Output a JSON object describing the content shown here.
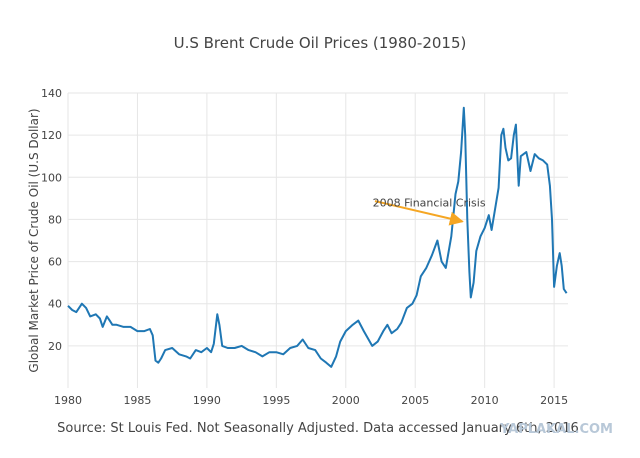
{
  "chart_data": {
    "type": "line",
    "title": "U.S Brent Crude Oil Prices (1980-2015)",
    "ylabel": "Global Market Price of Crude Oil (U.S Dollar)",
    "xlabel": "",
    "xlim": [
      1980,
      2016
    ],
    "ylim": [
      0,
      140
    ],
    "x_ticks": [
      1980,
      1985,
      1990,
      1995,
      2000,
      2005,
      2010,
      2015
    ],
    "y_ticks": [
      20,
      40,
      60,
      80,
      100,
      120,
      140
    ],
    "grid": true,
    "line_color": "#1f77b4",
    "series": [
      {
        "x": [
          1980.0,
          1980.3,
          1980.6,
          1981.0,
          1981.3,
          1981.6,
          1982.0,
          1982.3,
          1982.5,
          1982.8,
          1983.0,
          1983.2,
          1983.5,
          1984.0,
          1984.5,
          1985.0,
          1985.5,
          1985.9,
          1986.1,
          1986.3,
          1986.5,
          1986.7,
          1987.0,
          1987.5,
          1988.0,
          1988.5,
          1988.8,
          1989.2,
          1989.6,
          1990.0,
          1990.3,
          1990.5,
          1990.75,
          1990.9,
          1991.1,
          1991.5,
          1992.0,
          1992.5,
          1993.0,
          1993.5,
          1994.0,
          1994.5,
          1995.0,
          1995.5,
          1996.0,
          1996.5,
          1996.9,
          1997.3,
          1997.8,
          1998.2,
          1998.6,
          1998.95,
          1999.3,
          1999.6,
          2000.0,
          2000.5,
          2000.9,
          2001.3,
          2001.9,
          2002.3,
          2002.7,
          2003.0,
          2003.3,
          2003.7,
          2004.0,
          2004.4,
          2004.8,
          2005.1,
          2005.4,
          2005.8,
          2006.2,
          2006.6,
          2006.9,
          2007.2,
          2007.6,
          2007.9,
          2008.1,
          2008.3,
          2008.5,
          2008.6,
          2008.75,
          2008.9,
          2009.0,
          2009.2,
          2009.4,
          2009.7,
          2010.0,
          2010.3,
          2010.5,
          2010.8,
          2011.0,
          2011.2,
          2011.35,
          2011.5,
          2011.7,
          2011.9,
          2012.1,
          2012.25,
          2012.45,
          2012.6,
          2012.8,
          2013.0,
          2013.3,
          2013.6,
          2013.9,
          2014.2,
          2014.5,
          2014.7,
          2014.85,
          2015.0,
          2015.2,
          2015.4,
          2015.55,
          2015.7,
          2015.9
        ],
        "values": [
          39,
          37,
          36,
          40,
          38,
          34,
          35,
          33,
          29,
          34,
          32,
          30,
          30,
          29,
          29,
          27,
          27,
          28,
          25,
          13,
          12,
          14,
          18,
          19,
          16,
          15,
          14,
          18,
          17,
          19,
          17,
          21,
          35,
          30,
          20,
          19,
          19,
          20,
          18,
          17,
          15,
          17,
          17,
          16,
          19,
          20,
          23,
          19,
          18,
          14,
          12,
          10,
          15,
          22,
          27,
          30,
          32,
          27,
          20,
          22,
          27,
          30,
          26,
          28,
          31,
          38,
          40,
          44,
          53,
          57,
          63,
          70,
          60,
          57,
          72,
          92,
          98,
          112,
          133,
          120,
          80,
          55,
          43,
          50,
          65,
          72,
          76,
          82,
          75,
          87,
          95,
          120,
          123,
          114,
          108,
          109,
          120,
          125,
          96,
          110,
          111,
          112,
          103,
          111,
          109,
          108,
          106,
          96,
          80,
          48,
          58,
          64,
          58,
          47,
          45
        ]
      }
    ],
    "annotation": {
      "text": "2008 Financial Crisis",
      "label_at": [
        2006.0,
        88
      ],
      "arrow_from": [
        2000.1,
        83
      ],
      "arrow_to": [
        2008.4,
        79
      ],
      "arrow_color": "#f5a623"
    }
  },
  "footer": {
    "source": "Source: St Louis Fed.  Not Seasonally Adjusted. Data accessed January 6th, 2016",
    "watermark": "YAPLAKAL.COM"
  }
}
